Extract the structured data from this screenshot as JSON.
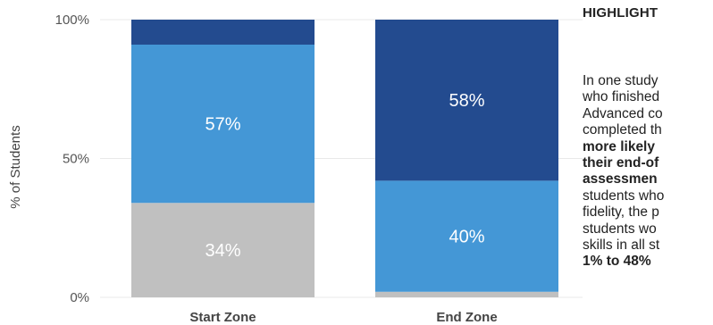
{
  "chart_data": {
    "type": "bar",
    "stacked": true,
    "categories": [
      "Start Zone",
      "End Zone"
    ],
    "ylabel": "% of Students",
    "ylim": [
      0,
      100
    ],
    "yticks": [
      "0%",
      "50%",
      "100%"
    ],
    "grid": true,
    "series": [
      {
        "values": [
          34,
          2
        ],
        "labels": [
          "34%",
          ""
        ],
        "color": "#c0c0c0",
        "label_color": "#ffffff"
      },
      {
        "values": [
          57,
          40
        ],
        "labels": [
          "57%",
          "40%"
        ],
        "color": "#4497d6",
        "label_color": "#ffffff"
      },
      {
        "values": [
          9,
          58
        ],
        "labels": [
          "",
          "58%"
        ],
        "color": "#234b8f",
        "label_color": "#ffffff"
      }
    ]
  },
  "highlight": {
    "title": "HIGHLIGHT",
    "lines": [
      {
        "text": "In one study",
        "bold": false
      },
      {
        "text": "who finished",
        "bold": false
      },
      {
        "text": "Advanced co",
        "bold": false
      },
      {
        "text": "completed th",
        "bold": false
      },
      {
        "text": "more likely",
        "bold": true
      },
      {
        "text": "their end-of",
        "bold": true
      },
      {
        "text": "assessmen",
        "bold": true
      },
      {
        "text": "students who",
        "bold": false
      },
      {
        "text": "fidelity, the p",
        "bold": false
      },
      {
        "text": "students wo",
        "bold": false
      },
      {
        "text": "skills in all st",
        "bold": false
      },
      {
        "text": "1% to 48%",
        "bold": true
      }
    ]
  }
}
